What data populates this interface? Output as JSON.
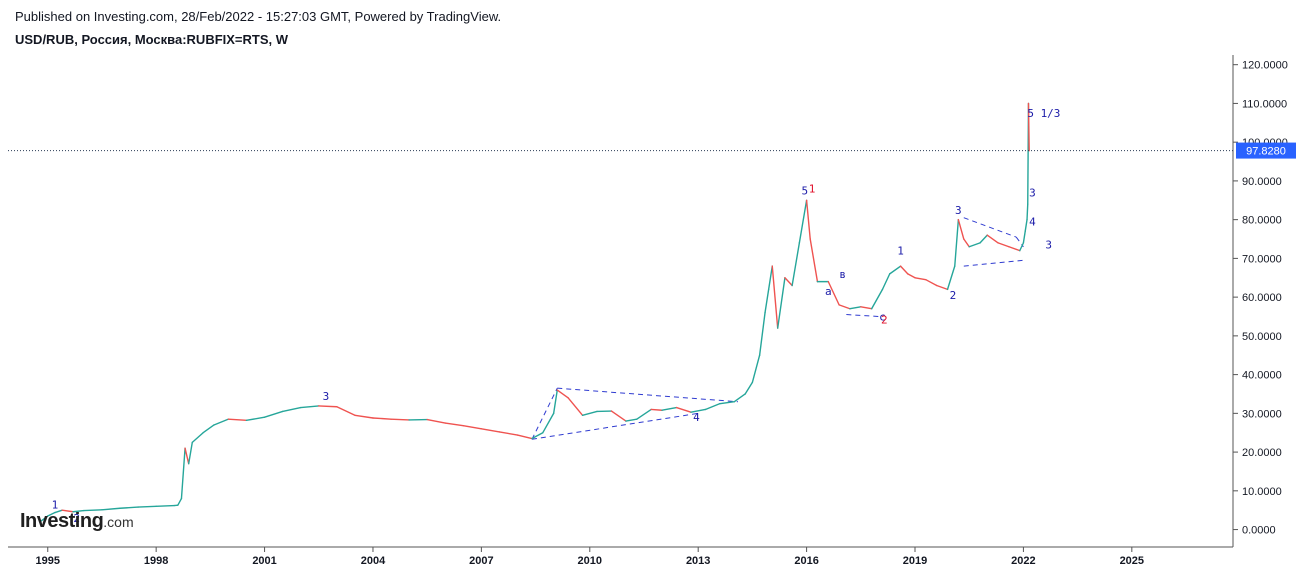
{
  "header": {
    "published": "Published on Investing.com, 28/Feb/2022 - 15:27:03 GMT, Powered by TradingView.",
    "symbol": "USD/RUB, Россия, Москва:RUBFIX=RTS, W"
  },
  "logo": {
    "main": "Investing",
    "suffix": ".com"
  },
  "colors": {
    "up": "#26a69a",
    "down": "#ef5350",
    "wave": "#1a1aa8",
    "wave_alt": "#e0102a",
    "price_tag": "#2962ff",
    "axis": "#555555"
  },
  "chart_data": {
    "type": "line",
    "title": "USD/RUB, Россия, Москва:RUBFIX=RTS, W",
    "xlim": [
      1993.9,
      2027.8
    ],
    "ylim": [
      -4.5,
      122.5
    ],
    "x_ticks": [
      "1995",
      "1998",
      "2001",
      "2004",
      "2007",
      "2010",
      "2013",
      "2016",
      "2019",
      "2022",
      "2025"
    ],
    "x_tick_values": [
      1995,
      1998,
      2001,
      2004,
      2007,
      2010,
      2013,
      2016,
      2019,
      2022,
      2025
    ],
    "y_ticks": [
      "0.0000",
      "10.0000",
      "20.0000",
      "30.0000",
      "40.0000",
      "50.0000",
      "60.0000",
      "70.0000",
      "80.0000",
      "90.0000",
      "100.0000",
      "110.0000",
      "120.0000"
    ],
    "y_tick_values": [
      0,
      10,
      20,
      30,
      40,
      50,
      60,
      70,
      80,
      90,
      100,
      110,
      120
    ],
    "last_price": 97.828,
    "last_price_label": "97.8280",
    "series": [
      {
        "x": [
          1994.8,
          1995.0,
          1995.2,
          1995.4,
          1995.7,
          1996.0,
          1996.5,
          1997.0,
          1997.5,
          1998.0,
          1998.5,
          1998.6,
          1998.7,
          1998.8,
          1998.9,
          1999.0,
          1999.3,
          1999.6,
          2000.0,
          2000.5,
          2001.0,
          2001.5,
          2002.0,
          2002.5,
          2003.0,
          2003.5,
          2004.0,
          2004.5,
          2005.0,
          2005.5,
          2006.0,
          2006.5,
          2007.0,
          2007.5,
          2008.0,
          2008.4,
          2008.7,
          2009.0,
          2009.1,
          2009.4,
          2009.8,
          2010.2,
          2010.6,
          2011.0,
          2011.3,
          2011.7,
          2012.0,
          2012.4,
          2012.8,
          2013.2,
          2013.6,
          2014.0,
          2014.3,
          2014.5,
          2014.7,
          2014.85,
          2014.95,
          2015.05,
          2015.2,
          2015.4,
          2015.6,
          2015.8,
          2016.0,
          2016.1,
          2016.3,
          2016.6,
          2016.9,
          2017.2,
          2017.5,
          2017.8,
          2018.1,
          2018.3,
          2018.6,
          2018.8,
          2019.0,
          2019.3,
          2019.6,
          2019.9,
          2020.1,
          2020.2,
          2020.35,
          2020.5,
          2020.8,
          2021.0,
          2021.3,
          2021.6,
          2021.9,
          2022.0,
          2022.05,
          2022.1,
          2022.12,
          2022.14,
          2022.16
        ],
        "y": [
          2.1,
          3.5,
          4.4,
          5.0,
          4.6,
          4.9,
          5.1,
          5.5,
          5.8,
          6.0,
          6.2,
          6.3,
          8.0,
          21.0,
          17.0,
          22.5,
          25.0,
          27.0,
          28.5,
          28.2,
          29.0,
          30.5,
          31.5,
          31.9,
          31.7,
          29.5,
          28.8,
          28.5,
          28.3,
          28.4,
          27.5,
          26.8,
          26.0,
          25.2,
          24.4,
          23.5,
          25.0,
          30.0,
          36.0,
          34.0,
          29.5,
          30.5,
          30.6,
          28.0,
          28.5,
          31.0,
          30.8,
          31.5,
          30.3,
          31.0,
          32.5,
          33.0,
          35.0,
          38.0,
          45.0,
          56.0,
          62.0,
          68.0,
          52.0,
          65.0,
          63.0,
          74.0,
          85.0,
          75.0,
          64.0,
          64.0,
          58.0,
          57.0,
          57.5,
          57.0,
          62.0,
          66.0,
          68.0,
          66.0,
          65.0,
          64.5,
          63.0,
          62.0,
          68.0,
          80.0,
          75.0,
          73.0,
          74.0,
          76.0,
          74.0,
          73.0,
          72.0,
          74.0,
          77.0,
          80.0,
          84.0,
          110.0,
          97.8
        ]
      }
    ],
    "wave_labels": [
      {
        "text": "1",
        "x": 1995.2,
        "y": 5.5,
        "color": "wave"
      },
      {
        "text": "2",
        "x": 1995.8,
        "y": 2.0,
        "color": "wave"
      },
      {
        "text": "3",
        "x": 2002.7,
        "y": 33.5,
        "color": "wave"
      },
      {
        "text": "4",
        "x": 2012.95,
        "y": 28.0,
        "color": "wave"
      },
      {
        "text": "5",
        "x": 2015.95,
        "y": 86.5,
        "color": "wave"
      },
      {
        "text": "1",
        "x": 2016.15,
        "y": 87.0,
        "color": "wave_alt"
      },
      {
        "text": "a",
        "x": 2016.6,
        "y": 60.5,
        "color": "wave"
      },
      {
        "text": "в",
        "x": 2017.0,
        "y": 65.0,
        "color": "wave"
      },
      {
        "text": "с",
        "x": 2018.1,
        "y": 54.0,
        "color": "wave"
      },
      {
        "text": "2",
        "x": 2018.15,
        "y": 53.2,
        "color": "wave_alt"
      },
      {
        "text": "1",
        "x": 2018.6,
        "y": 71.0,
        "color": "wave"
      },
      {
        "text": "3",
        "x": 2020.2,
        "y": 81.5,
        "color": "wave"
      },
      {
        "text": "2",
        "x": 2020.05,
        "y": 59.5,
        "color": "wave"
      },
      {
        "text": "3",
        "x": 2022.25,
        "y": 86.0,
        "color": "wave"
      },
      {
        "text": "4",
        "x": 2022.25,
        "y": 78.5,
        "color": "wave"
      },
      {
        "text": "3",
        "x": 2022.7,
        "y": 72.5,
        "color": "wave"
      },
      {
        "text": "5",
        "x": 2022.2,
        "y": 106.5,
        "color": "wave"
      },
      {
        "text": "1/3",
        "x": 2022.75,
        "y": 106.5,
        "color": "wave"
      }
    ],
    "trend_lines": [
      {
        "x": [
          2008.4,
          2009.1
        ],
        "y": [
          23.3,
          36.5
        ]
      },
      {
        "x": [
          2009.1,
          2014.1
        ],
        "y": [
          36.5,
          33.0
        ]
      },
      {
        "x": [
          2008.4,
          2013.0
        ],
        "y": [
          23.3,
          30.0
        ]
      },
      {
        "x": [
          2017.1,
          2018.0
        ],
        "y": [
          55.5,
          55.0
        ]
      },
      {
        "x": [
          2020.35,
          2021.8
        ],
        "y": [
          80.5,
          75.5
        ]
      },
      {
        "x": [
          2021.8,
          2022.0
        ],
        "y": [
          75.5,
          73.0
        ]
      },
      {
        "x": [
          2020.35,
          2022.0
        ],
        "y": [
          68.0,
          69.5
        ]
      }
    ]
  }
}
